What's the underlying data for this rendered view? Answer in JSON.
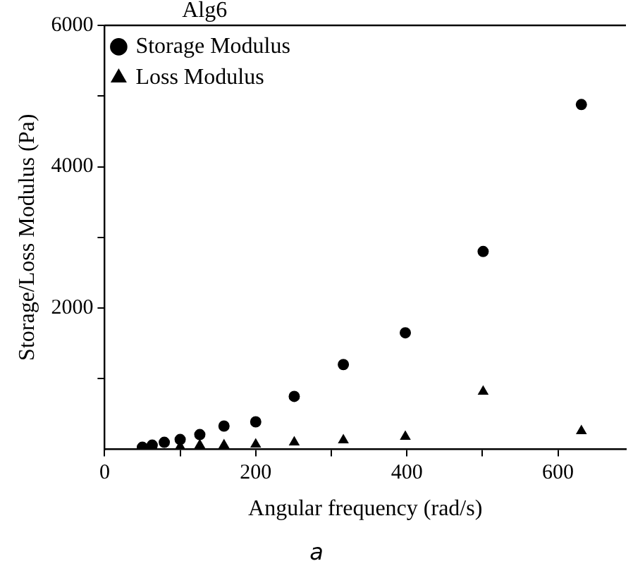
{
  "chart_data": {
    "type": "scatter",
    "xlabel": "Angular frequency (rad/s)",
    "ylabel": "Storage/Loss Modulus (Pa)",
    "legend_title": "Alg6",
    "legend": "top left",
    "grid": false,
    "series": [
      {
        "name": "Storage Modulus",
        "color": "#000000",
        "marker": "circle",
        "x": [
          50,
          63,
          79,
          100,
          126,
          158,
          200,
          251,
          316,
          398,
          501,
          631
        ],
        "values": [
          30,
          60,
          100,
          140,
          210,
          330,
          390,
          750,
          1200,
          1650,
          2800,
          4880
        ]
      },
      {
        "name": "Loss Modulus",
        "color": "#000000",
        "marker": "triangle",
        "x": [
          100,
          126,
          158,
          200,
          251,
          316,
          398,
          501,
          631
        ],
        "values": [
          40,
          60,
          60,
          70,
          100,
          130,
          180,
          820,
          260
        ]
      }
    ],
    "xlim": [
      0,
      690
    ],
    "xticks": [
      0,
      {
        "value": 100,
        "label": null
      },
      200,
      {
        "value": 300,
        "label": null
      },
      400,
      {
        "value": 500,
        "label": null
      },
      600
    ],
    "ylim": [
      0,
      6000
    ],
    "yticks": [
      {
        "value": 1000,
        "label": null
      },
      2000,
      {
        "value": 3000,
        "label": null
      },
      4000,
      {
        "value": 5000,
        "label": null
      },
      6000
    ],
    "annotations": [
      "a"
    ]
  }
}
